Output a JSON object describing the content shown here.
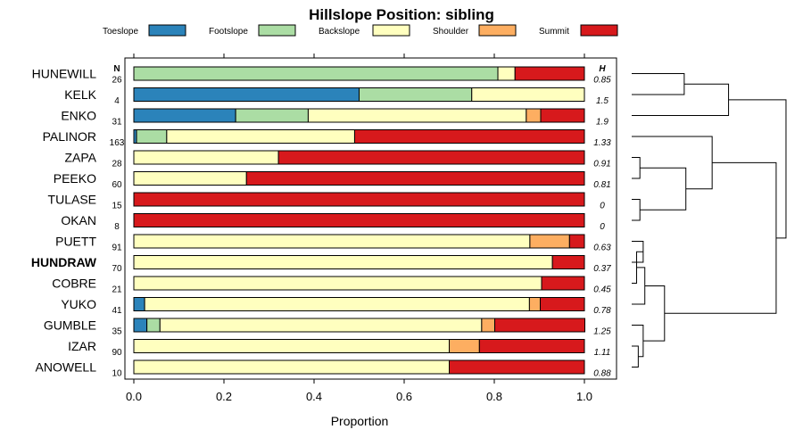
{
  "chart_data": {
    "type": "bar",
    "subtype": "stacked-horizontal-proportion",
    "title": "Hillslope Position: sibling",
    "xlabel": "Proportion",
    "ylabel": "",
    "xlim": [
      0,
      1
    ],
    "x_ticks": [
      "0.0",
      "0.2",
      "0.4",
      "0.6",
      "0.8",
      "1.0"
    ],
    "x_tick_values": [
      0,
      0.2,
      0.4,
      0.6,
      0.8,
      1.0
    ],
    "n_header": "N",
    "h_header": "H",
    "legend": [
      {
        "name": "Toeslope",
        "color": "#2b83ba"
      },
      {
        "name": "Footslope",
        "color": "#abdda4"
      },
      {
        "name": "Backslope",
        "color": "#ffffbf"
      },
      {
        "name": "Shoulder",
        "color": "#fdae61"
      },
      {
        "name": "Summit",
        "color": "#d7191c"
      }
    ],
    "rows": [
      {
        "label": "HUNEWILL",
        "n": "26",
        "h": "0.85",
        "bold": false,
        "values": [
          0,
          0.808,
          0.038,
          0,
          0.154
        ]
      },
      {
        "label": "KELK",
        "n": "4",
        "h": "1.5",
        "bold": false,
        "values": [
          0.5,
          0.25,
          0.25,
          0,
          0
        ]
      },
      {
        "label": "ENKO",
        "n": "31",
        "h": "1.9",
        "bold": false,
        "values": [
          0.226,
          0.161,
          0.484,
          0.032,
          0.097
        ]
      },
      {
        "label": "PALINOR",
        "n": "163",
        "h": "1.33",
        "bold": false,
        "values": [
          0.006,
          0.067,
          0.417,
          0,
          0.51
        ]
      },
      {
        "label": "ZAPA",
        "n": "28",
        "h": "0.91",
        "bold": false,
        "values": [
          0,
          0,
          0.321,
          0,
          0.679
        ]
      },
      {
        "label": "PEEKO",
        "n": "60",
        "h": "0.81",
        "bold": false,
        "values": [
          0,
          0,
          0.25,
          0,
          0.75
        ]
      },
      {
        "label": "TULASE",
        "n": "15",
        "h": "0",
        "bold": false,
        "values": [
          0,
          0,
          0,
          0,
          1
        ]
      },
      {
        "label": "OKAN",
        "n": "8",
        "h": "0",
        "bold": false,
        "values": [
          0,
          0,
          0,
          0,
          1
        ]
      },
      {
        "label": "PUETT",
        "n": "91",
        "h": "0.63",
        "bold": false,
        "values": [
          0,
          0,
          0.879,
          0.088,
          0.033
        ]
      },
      {
        "label": "HUNDRAW",
        "n": "70",
        "h": "0.37",
        "bold": true,
        "values": [
          0,
          0,
          0.929,
          0,
          0.071
        ]
      },
      {
        "label": "COBRE",
        "n": "21",
        "h": "0.45",
        "bold": false,
        "values": [
          0,
          0,
          0.905,
          0,
          0.095
        ]
      },
      {
        "label": "YUKO",
        "n": "41",
        "h": "0.78",
        "bold": false,
        "values": [
          0.024,
          0,
          0.854,
          0.024,
          0.098
        ]
      },
      {
        "label": "GUMBLE",
        "n": "35",
        "h": "1.25",
        "bold": false,
        "values": [
          0.029,
          0.029,
          0.714,
          0.029,
          0.2
        ]
      },
      {
        "label": "IZAR",
        "n": "90",
        "h": "1.11",
        "bold": false,
        "values": [
          0,
          0,
          0.7,
          0.067,
          0.233
        ]
      },
      {
        "label": "ANOWELL",
        "n": "10",
        "h": "0.88",
        "bold": false,
        "values": [
          0,
          0,
          0.7,
          0,
          0.3
        ]
      }
    ],
    "dendrogram": {
      "orientation": "right",
      "height_max": 1,
      "merges": [
        {
          "a": "PUETT",
          "b": "HUNDRAW",
          "height": 0.07
        },
        {
          "a": "m0",
          "b": "COBRE",
          "height": 0.03
        },
        {
          "a": "m1",
          "b": "YUKO",
          "height": 0.08
        },
        {
          "a": "IZAR",
          "b": "ANOWELL",
          "height": 0.04
        },
        {
          "a": "GUMBLE",
          "b": "m3",
          "height": 0.07
        },
        {
          "a": "m2",
          "b": "m4",
          "height": 0.2
        },
        {
          "a": "TULASE",
          "b": "OKAN",
          "height": 0.05
        },
        {
          "a": "ZAPA",
          "b": "PEEKO",
          "height": 0.05
        },
        {
          "a": "m7",
          "b": "m6",
          "height": 0.33
        },
        {
          "a": "PALINOR",
          "b": "m8",
          "height": 0.49
        },
        {
          "a": "m9",
          "b": "m5",
          "height": 0.88
        },
        {
          "a": "HUNEWILL",
          "b": "KELK",
          "height": 0.32
        },
        {
          "a": "m11",
          "b": "ENKO",
          "height": 0.59
        },
        {
          "a": "m12",
          "b": "m10",
          "height": 0.94
        }
      ]
    }
  }
}
